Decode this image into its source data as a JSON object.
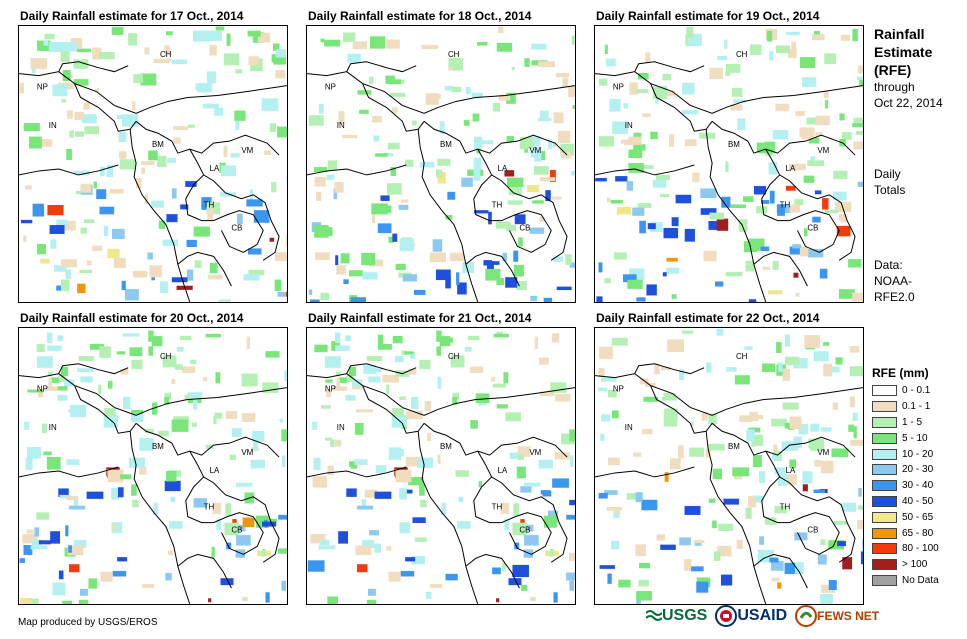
{
  "panels": [
    {
      "title": "Daily Rainfall estimate for 17 Oct., 2014"
    },
    {
      "title": "Daily Rainfall estimate for 18 Oct., 2014"
    },
    {
      "title": "Daily Rainfall estimate for 19 Oct., 2014"
    },
    {
      "title": "Daily Rainfall estimate for 20 Oct., 2014"
    },
    {
      "title": "Daily Rainfall estimate for 21 Oct., 2014"
    },
    {
      "title": "Daily Rainfall estimate for 22 Oct., 2014"
    }
  ],
  "country_labels": [
    "CH",
    "NP",
    "IN",
    "BM",
    "LA",
    "VM",
    "TH",
    "CB"
  ],
  "side": {
    "heading1": "Rainfall",
    "heading2": "Estimate",
    "heading3": "(RFE)",
    "through": "through",
    "date": "Oct 22, 2014",
    "daily": "Daily",
    "totals": "Totals",
    "data_label": "Data:",
    "data_src1": "NOAA-",
    "data_src2": "RFE2.0"
  },
  "legend": {
    "title": "RFE (mm)",
    "items": [
      {
        "label": "0 - 0.1",
        "color": "#ffffff"
      },
      {
        "label": "0.1 - 1",
        "color": "#f0dcbe"
      },
      {
        "label": "1 - 5",
        "color": "#b4f0b4"
      },
      {
        "label": "5 - 10",
        "color": "#78e678"
      },
      {
        "label": "10 - 20",
        "color": "#b4f0f0"
      },
      {
        "label": "20 - 30",
        "color": "#8cc8f0"
      },
      {
        "label": "30 - 40",
        "color": "#3c96f0"
      },
      {
        "label": "40 - 50",
        "color": "#1e50dc"
      },
      {
        "label": "50 - 65",
        "color": "#f0e68c"
      },
      {
        "label": "65 - 80",
        "color": "#f0960a"
      },
      {
        "label": "80 - 100",
        "color": "#f03c0a"
      },
      {
        "label": "> 100",
        "color": "#a01e1e"
      },
      {
        "label": "No Data",
        "color": "#a0a0a0"
      }
    ]
  },
  "footer": "Map produced by USGS/EROS",
  "logos": {
    "usgs": "USGS",
    "usaid": "USAID",
    "fews": "FEWS NET"
  }
}
